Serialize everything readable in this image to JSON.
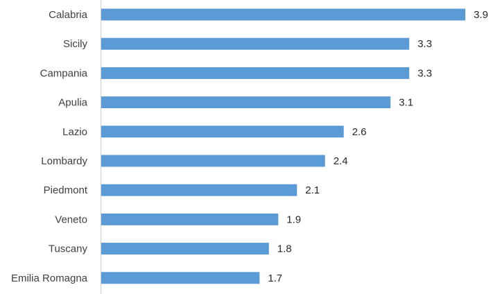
{
  "chart_data": {
    "type": "bar",
    "orientation": "horizontal",
    "title": "",
    "xlabel": "",
    "ylabel": "",
    "categories": [
      "Calabria",
      "Sicily",
      "Campania",
      "Apulia",
      "Lazio",
      "Lombardy",
      "Piedmont",
      "Veneto",
      "Tuscany",
      "Emilia Romagna"
    ],
    "values": [
      3.9,
      3.3,
      3.3,
      3.1,
      2.6,
      2.4,
      2.1,
      1.9,
      1.8,
      1.7
    ],
    "value_labels": [
      "3.9",
      "3.3",
      "3.3",
      "3.1",
      "2.6",
      "2.4",
      "2.1",
      "1.9",
      "1.8",
      "1.7"
    ],
    "xlim": [
      0,
      4
    ],
    "grid": false,
    "legend": "none",
    "bar_color": "#5B9BD5",
    "axis_color": "#D0D0D0"
  }
}
